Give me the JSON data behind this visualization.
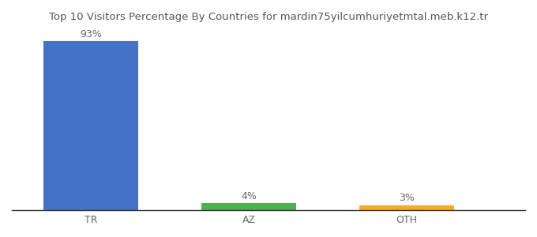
{
  "categories": [
    "TR",
    "AZ",
    "OTH"
  ],
  "values": [
    93,
    4,
    3
  ],
  "bar_colors": [
    "#4472c4",
    "#4caf50",
    "#ffa726"
  ],
  "labels": [
    "93%",
    "4%",
    "3%"
  ],
  "title": "Top 10 Visitors Percentage By Countries for mardin75yilcumhuriyetmtal.meb.k12.tr",
  "ylim": [
    0,
    100
  ],
  "background_color": "#ffffff",
  "label_fontsize": 9,
  "tick_fontsize": 9,
  "title_fontsize": 9.5
}
